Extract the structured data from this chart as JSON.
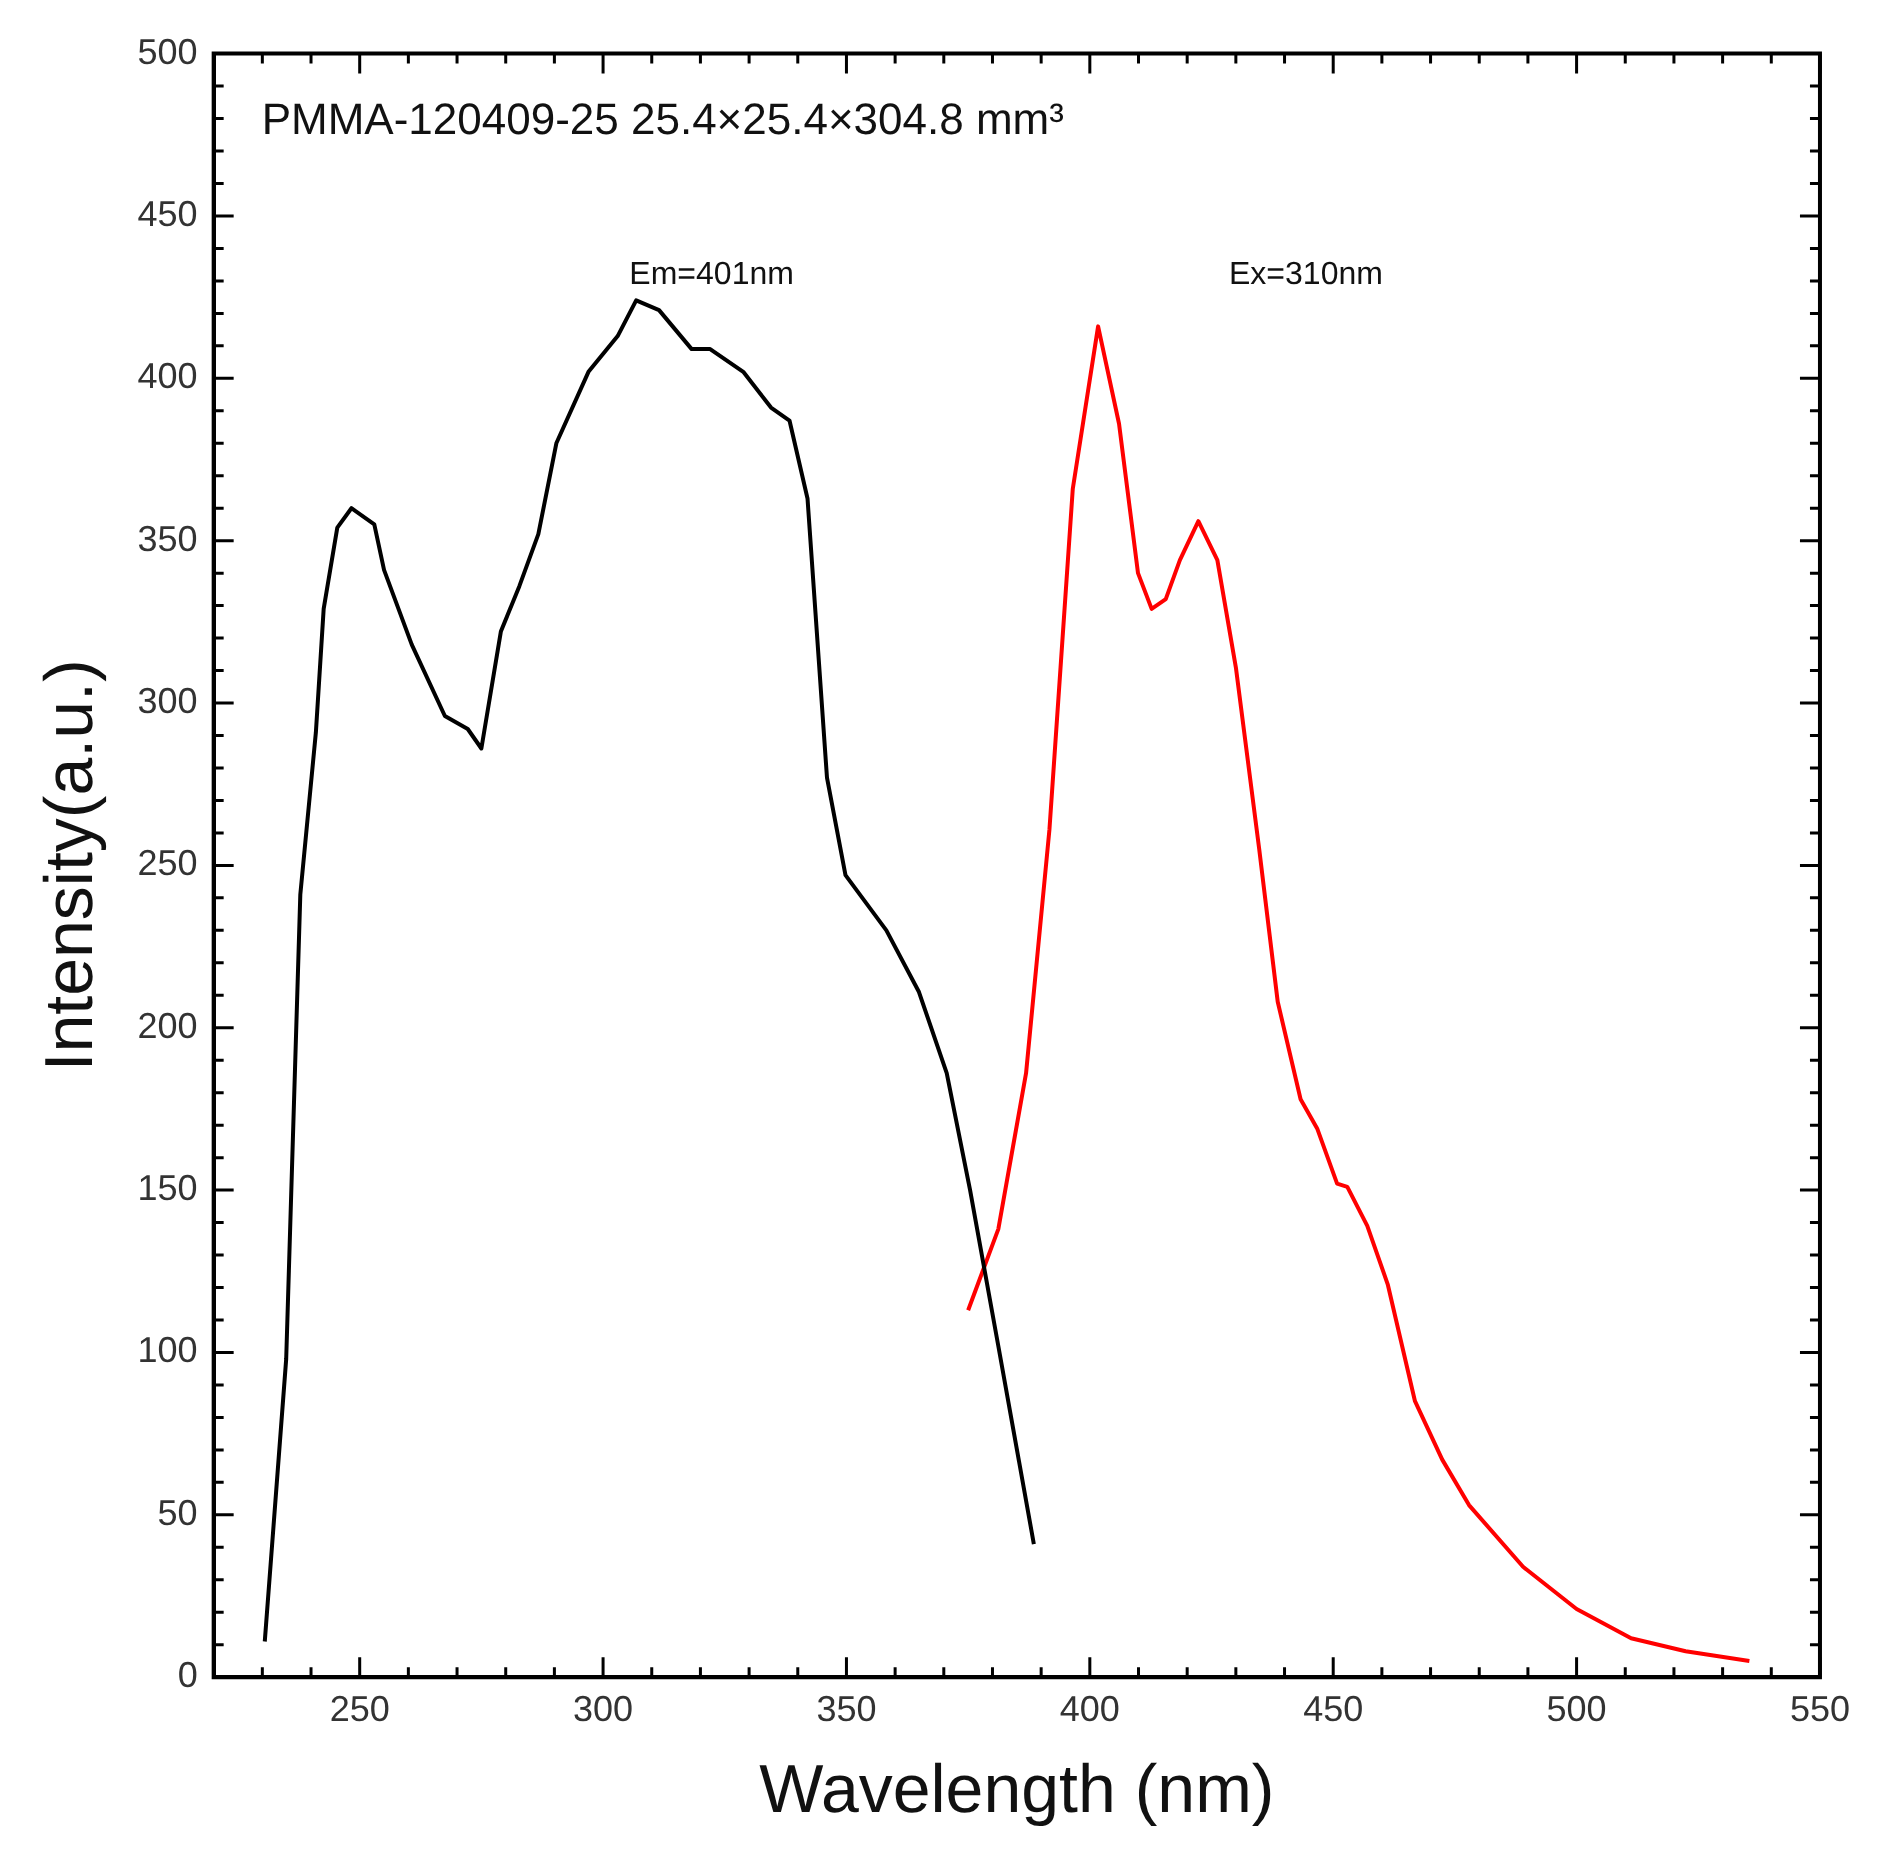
{
  "chart_data": {
    "type": "line",
    "title": "PMMA-120409-25 25.4×25.4×304.8 mm³",
    "xlabel": "Wavelength (nm)",
    "ylabel": "Intensity(a.u.)",
    "xlim": [
      220,
      550
    ],
    "xticks": [
      250,
      300,
      350,
      400,
      450,
      500,
      550
    ],
    "ylim": [
      0,
      500
    ],
    "yticks": [
      0,
      50,
      100,
      150,
      200,
      250,
      300,
      350,
      400,
      450,
      500
    ],
    "grid": false,
    "legend": false,
    "marker": "none",
    "line_style": "solid",
    "annotations": [
      "Em=401nm",
      "Ex=310nm"
    ],
    "series": [
      {
        "color": "#000000",
        "x": [
          230.5,
          234.9,
          237.8,
          241,
          242.6,
          245.4,
          248.3,
          253,
          255,
          260.7,
          267.5,
          272.2,
          275,
          279,
          282.8,
          286.7,
          290.4,
          297,
          303,
          306.8,
          311.5,
          318.2,
          322,
          328.8,
          334.5,
          338.3,
          342,
          346,
          349.8,
          358.2,
          364.9,
          370.6,
          375.4,
          381.2,
          388.5
        ],
        "values": [
          11,
          98,
          241,
          291,
          329,
          354,
          360,
          355,
          341,
          318,
          296,
          292,
          286,
          322,
          336,
          352,
          380,
          402,
          413,
          424,
          421,
          409,
          409,
          402,
          391,
          387,
          363,
          277,
          247,
          230,
          211,
          186,
          150,
          102,
          41
        ]
      },
      {
        "color": "#ff0000",
        "x": [
          375,
          381.2,
          386.9,
          391.7,
          396.5,
          401.7,
          406,
          409.9,
          412.7,
          415.6,
          418.5,
          422.3,
          426.2,
          430,
          434.8,
          438.6,
          443.3,
          446.7,
          450.8,
          452.9,
          457,
          461.2,
          466.8,
          472.4,
          477.9,
          489,
          500,
          511.2,
          522.4,
          535.5
        ],
        "values": [
          113,
          138,
          186,
          261,
          366,
          416,
          386,
          340,
          329,
          332,
          344,
          356,
          344,
          311,
          255,
          208,
          178,
          169,
          152,
          151,
          139,
          121,
          85,
          67,
          53,
          34,
          21,
          12,
          8,
          5
        ]
      }
    ]
  }
}
